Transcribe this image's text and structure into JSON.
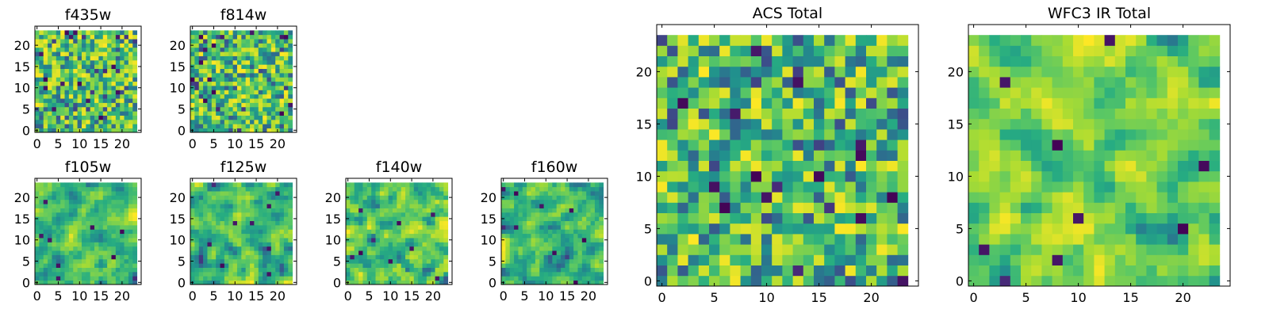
{
  "chart_data": [
    {
      "type": "heatmap",
      "title": "f435w",
      "grid_size": [
        24,
        24
      ],
      "x_range": [
        -0.5,
        24.5
      ],
      "y_range": [
        -0.5,
        24.5
      ],
      "x_ticks": [
        0,
        5,
        10,
        15,
        20
      ],
      "y_ticks": [
        0,
        5,
        10,
        15,
        20
      ],
      "colormap": "viridis",
      "grid": false,
      "seed": 17,
      "smooth": false
    },
    {
      "type": "heatmap",
      "title": "f814w",
      "grid_size": [
        24,
        24
      ],
      "x_range": [
        -0.5,
        24.5
      ],
      "y_range": [
        -0.5,
        24.5
      ],
      "x_ticks": [
        0,
        5,
        10,
        15,
        20
      ],
      "y_ticks": [
        0,
        5,
        10,
        15,
        20
      ],
      "colormap": "viridis",
      "grid": false,
      "seed": 29,
      "smooth": false
    },
    {
      "type": "heatmap",
      "title": "f105w",
      "grid_size": [
        24,
        24
      ],
      "x_range": [
        -0.5,
        24.5
      ],
      "y_range": [
        -0.5,
        24.5
      ],
      "x_ticks": [
        0,
        5,
        10,
        15,
        20
      ],
      "y_ticks": [
        0,
        5,
        10,
        15,
        20
      ],
      "colormap": "viridis",
      "grid": false,
      "seed": 41,
      "smooth": true
    },
    {
      "type": "heatmap",
      "title": "f125w",
      "grid_size": [
        24,
        24
      ],
      "x_range": [
        -0.5,
        24.5
      ],
      "y_range": [
        -0.5,
        24.5
      ],
      "x_ticks": [
        0,
        5,
        10,
        15,
        20
      ],
      "y_ticks": [
        0,
        5,
        10,
        15,
        20
      ],
      "colormap": "viridis",
      "grid": false,
      "seed": 53,
      "smooth": true
    },
    {
      "type": "heatmap",
      "title": "f140w",
      "grid_size": [
        24,
        24
      ],
      "x_range": [
        -0.5,
        24.5
      ],
      "y_range": [
        -0.5,
        24.5
      ],
      "x_ticks": [
        0,
        5,
        10,
        15,
        20
      ],
      "y_ticks": [
        0,
        5,
        10,
        15,
        20
      ],
      "colormap": "viridis",
      "grid": false,
      "seed": 67,
      "smooth": true
    },
    {
      "type": "heatmap",
      "title": "f160w",
      "grid_size": [
        24,
        24
      ],
      "x_range": [
        -0.5,
        24.5
      ],
      "y_range": [
        -0.5,
        24.5
      ],
      "x_ticks": [
        0,
        5,
        10,
        15,
        20
      ],
      "y_ticks": [
        0,
        5,
        10,
        15,
        20
      ],
      "colormap": "viridis",
      "grid": false,
      "seed": 79,
      "smooth": true
    },
    {
      "type": "heatmap",
      "title": "ACS Total",
      "grid_size": [
        24,
        24
      ],
      "x_range": [
        -0.5,
        24.5
      ],
      "y_range": [
        -0.5,
        24.5
      ],
      "x_ticks": [
        0,
        5,
        10,
        15,
        20
      ],
      "y_ticks": [
        0,
        5,
        10,
        15,
        20
      ],
      "colormap": "viridis",
      "grid": false,
      "seed": 101,
      "smooth": false
    },
    {
      "type": "heatmap",
      "title": "WFC3 IR Total",
      "grid_size": [
        24,
        24
      ],
      "x_range": [
        -0.5,
        24.5
      ],
      "y_range": [
        -0.5,
        24.5
      ],
      "x_ticks": [
        0,
        5,
        10,
        15,
        20
      ],
      "y_ticks": [
        0,
        5,
        10,
        15,
        20
      ],
      "colormap": "viridis",
      "grid": false,
      "seed": 131,
      "smooth": true
    }
  ]
}
